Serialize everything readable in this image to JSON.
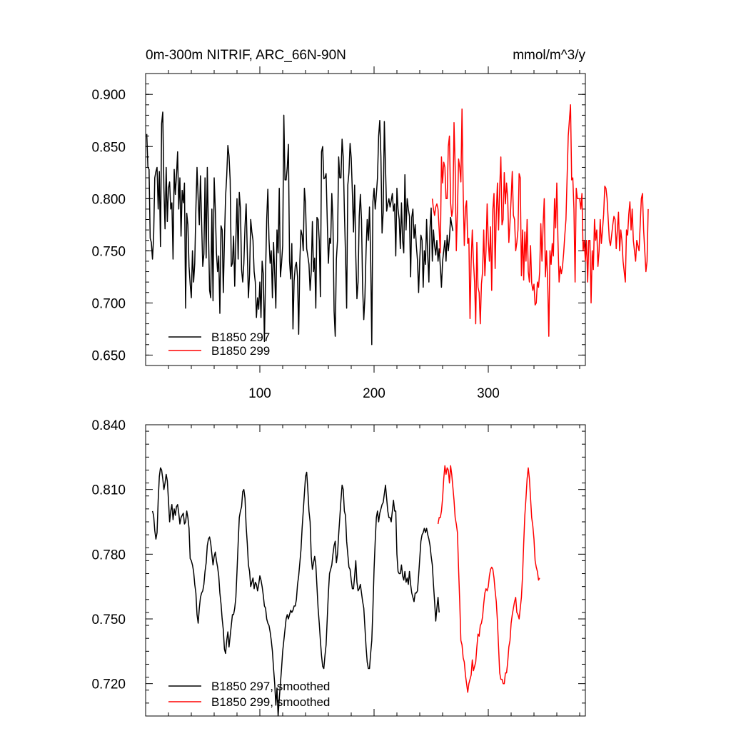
{
  "colors": {
    "series1": "#000000",
    "series2": "#ff0000",
    "axes": "#000000",
    "background": "#ffffff"
  },
  "chart_data": [
    {
      "type": "line",
      "title": "0m-300m NITRIF, ARC_66N-90N",
      "units": "mmol/m^3/y",
      "xlabel": "",
      "ylabel": "",
      "xlim": [
        0,
        385
      ],
      "ylim": [
        0.64,
        0.92
      ],
      "xticks": [
        100,
        200,
        300
      ],
      "xtick_labels": [
        "100",
        "200",
        "300"
      ],
      "yticks": [
        0.65,
        0.7,
        0.75,
        0.8,
        0.85,
        0.9
      ],
      "ytick_labels": [
        "0.650",
        "0.700",
        "0.750",
        "0.800",
        "0.850",
        "0.900"
      ],
      "legend_position": "bottom-left",
      "grid": false,
      "series": [
        {
          "name": "B1850 297",
          "color": "#000000",
          "x_start": 1,
          "values": [
            0.862,
            0.83,
            0.828,
            0.762,
            0.758,
            0.742,
            0.763,
            0.82,
            0.826,
            0.83,
            0.79,
            0.826,
            0.754,
            0.872,
            0.883,
            0.81,
            0.771,
            0.83,
            0.778,
            0.81,
            0.816,
            0.79,
            0.796,
            0.742,
            0.828,
            0.804,
            0.822,
            0.845,
            0.79,
            0.82,
            0.764,
            0.808,
            0.796,
            0.815,
            0.695,
            0.786,
            0.775,
            0.735,
            0.718,
            0.705,
            0.75,
            0.72,
            0.738,
            0.79,
            0.83,
            0.8,
            0.775,
            0.822,
            0.778,
            0.735,
            0.747,
            0.82,
            0.743,
            0.83,
            0.77,
            0.712,
            0.705,
            0.79,
            0.702,
            0.82,
            0.79,
            0.748,
            0.73,
            0.745,
            0.69,
            0.774,
            0.77,
            0.71,
            0.76,
            0.802,
            0.822,
            0.851,
            0.841,
            0.818,
            0.735,
            0.738,
            0.764,
            0.716,
            0.761,
            0.8,
            0.742,
            0.806,
            0.791,
            0.732,
            0.72,
            0.738,
            0.773,
            0.795,
            0.75,
            0.705,
            0.728,
            0.78,
            0.768,
            0.76,
            0.73,
            0.72,
            0.686,
            0.705,
            0.694,
            0.72,
            0.686,
            0.74,
            0.728,
            0.663,
            0.728,
            0.78,
            0.809,
            0.761,
            0.738,
            0.75,
            0.705,
            0.758,
            0.728,
            0.695,
            0.77,
            0.748,
            0.81,
            0.725,
            0.738,
            0.755,
            0.88,
            0.818,
            0.818,
            0.83,
            0.852,
            0.74,
            0.723,
            0.757,
            0.675,
            0.721,
            0.735,
            0.739,
            0.725,
            0.67,
            0.74,
            0.77,
            0.765,
            0.75,
            0.81,
            0.795,
            0.752,
            0.745,
            0.737,
            0.712,
            0.73,
            0.778,
            0.73,
            0.743,
            0.695,
            0.782,
            0.78,
            0.76,
            0.706,
            0.845,
            0.85,
            0.819,
            0.82,
            0.824,
            0.78,
            0.738,
            0.762,
            0.757,
            0.805,
            0.778,
            0.692,
            0.668,
            0.742,
            0.76,
            0.84,
            0.82,
            0.82,
            0.857,
            0.84,
            0.789,
            0.746,
            0.695,
            0.813,
            0.825,
            0.853,
            0.839,
            0.806,
            0.768,
            0.813,
            0.745,
            0.704,
            0.72,
            0.783,
            0.804,
            0.78,
            0.714,
            0.684,
            0.706,
            0.75,
            0.78,
            0.76,
            0.792,
            0.744,
            0.66,
            0.797,
            0.81,
            0.79,
            0.804,
            0.82,
            0.86,
            0.875,
            0.84,
            0.767,
            0.787,
            0.874,
            0.831,
            0.788,
            0.795,
            0.8,
            0.792,
            0.798,
            0.805,
            0.788,
            0.795,
            0.745,
            0.81,
            0.79,
            0.78,
            0.752,
            0.796,
            0.76,
            0.748,
            0.823,
            0.77,
            0.8,
            0.79,
            0.783,
            0.725,
            0.782,
            0.79,
            0.762,
            0.775,
            0.755,
            0.741,
            0.71,
            0.742,
            0.765,
            0.76,
            0.715,
            0.75,
            0.737,
            0.78,
            0.745,
            0.72,
            0.772,
            0.791,
            0.74,
            0.77,
            0.755,
            0.746,
            0.76,
            0.74,
            0.752,
            0.735,
            0.715,
            0.74,
            0.75,
            0.76,
            0.74,
            0.765,
            0.75,
            0.762,
            0.782,
            0.775,
            0.769
          ]
        },
        {
          "name": "B1850 299",
          "color": "#ff0000",
          "x_start": 251,
          "values": [
            0.8,
            0.79,
            0.784,
            0.792,
            0.795,
            0.79,
            0.77,
            0.748,
            0.84,
            0.815,
            0.835,
            0.83,
            0.8,
            0.8,
            0.85,
            0.86,
            0.796,
            0.783,
            0.79,
            0.873,
            0.83,
            0.75,
            0.788,
            0.838,
            0.83,
            0.816,
            0.886,
            0.808,
            0.755,
            0.791,
            0.798,
            0.757,
            0.762,
            0.685,
            0.74,
            0.77,
            0.74,
            0.72,
            0.68,
            0.758,
            0.715,
            0.71,
            0.68,
            0.718,
            0.73,
            0.77,
            0.726,
            0.75,
            0.795,
            0.76,
            0.74,
            0.773,
            0.712,
            0.79,
            0.805,
            0.733,
            0.785,
            0.815,
            0.77,
            0.81,
            0.84,
            0.775,
            0.78,
            0.825,
            0.795,
            0.815,
            0.8,
            0.758,
            0.777,
            0.8,
            0.826,
            0.784,
            0.78,
            0.75,
            0.758,
            0.77,
            0.824,
            0.82,
            0.726,
            0.77,
            0.722,
            0.768,
            0.74,
            0.78,
            0.73,
            0.72,
            0.755,
            0.719,
            0.712,
            0.718,
            0.698,
            0.7,
            0.72,
            0.715,
            0.73,
            0.776,
            0.74,
            0.775,
            0.8,
            0.725,
            0.75,
            0.72,
            0.668,
            0.75,
            0.737,
            0.757,
            0.745,
            0.8,
            0.772,
            0.815,
            0.76,
            0.72,
            0.735,
            0.728,
            0.735,
            0.748,
            0.765,
            0.78,
            0.82,
            0.86,
            0.875,
            0.89,
            0.818,
            0.82,
            0.79,
            0.72,
            0.81,
            0.8,
            0.8,
            0.8,
            0.79,
            0.805,
            0.75,
            0.76,
            0.74,
            0.76,
            0.72,
            0.76,
            0.76,
            0.7,
            0.75,
            0.732,
            0.78,
            0.76,
            0.77,
            0.735,
            0.75,
            0.78,
            0.757,
            0.77,
            0.785,
            0.812,
            0.81,
            0.8,
            0.78,
            0.76,
            0.755,
            0.765,
            0.775,
            0.783,
            0.78,
            0.752,
            0.77,
            0.787,
            0.75,
            0.77,
            0.76,
            0.74,
            0.73,
            0.72,
            0.77,
            0.765,
            0.785,
            0.797,
            0.77,
            0.79,
            0.76,
            0.75,
            0.74,
            0.76,
            0.755,
            0.75,
            0.775,
            0.8,
            0.805,
            0.77,
            0.75,
            0.73,
            0.74,
            0.79
          ]
        }
      ]
    },
    {
      "type": "line",
      "title": "",
      "xlabel": "",
      "ylabel": "",
      "xlim": [
        0,
        385
      ],
      "ylim": [
        0.705,
        0.84
      ],
      "xticks": [
        100,
        200,
        300
      ],
      "yticks": [
        0.72,
        0.75,
        0.78,
        0.81,
        0.84
      ],
      "ytick_labels": [
        "0.720",
        "0.750",
        "0.780",
        "0.810",
        "0.840"
      ],
      "legend_position": "bottom-left",
      "grid": false,
      "series": [
        {
          "name": "B1850 297, smoothed",
          "color": "#000000",
          "x_start": 6,
          "values": [
            0.8,
            0.798,
            0.791,
            0.787,
            0.79,
            0.805,
            0.816,
            0.82,
            0.819,
            0.815,
            0.81,
            0.813,
            0.817,
            0.814,
            0.805,
            0.795,
            0.8,
            0.803,
            0.796,
            0.801,
            0.798,
            0.802,
            0.803,
            0.799,
            0.794,
            0.797,
            0.798,
            0.799,
            0.794,
            0.795,
            0.8,
            0.797,
            0.792,
            0.778,
            0.777,
            0.775,
            0.772,
            0.766,
            0.762,
            0.752,
            0.748,
            0.755,
            0.76,
            0.762,
            0.763,
            0.766,
            0.772,
            0.776,
            0.784,
            0.787,
            0.788,
            0.785,
            0.78,
            0.775,
            0.779,
            0.781,
            0.777,
            0.774,
            0.77,
            0.762,
            0.757,
            0.75,
            0.745,
            0.736,
            0.734,
            0.74,
            0.744,
            0.737,
            0.742,
            0.747,
            0.752,
            0.752,
            0.755,
            0.76,
            0.772,
            0.785,
            0.797,
            0.8,
            0.802,
            0.809,
            0.81,
            0.806,
            0.793,
            0.785,
            0.775,
            0.772,
            0.765,
            0.767,
            0.769,
            0.764,
            0.767,
            0.766,
            0.763,
            0.766,
            0.77,
            0.768,
            0.765,
            0.761,
            0.756,
            0.755,
            0.75,
            0.748,
            0.747,
            0.744,
            0.74,
            0.735,
            0.727,
            0.72,
            0.71,
            0.718,
            0.705,
            0.713,
            0.72,
            0.727,
            0.735,
            0.74,
            0.745,
            0.75,
            0.752,
            0.75,
            0.752,
            0.754,
            0.753,
            0.754,
            0.756,
            0.756,
            0.759,
            0.766,
            0.77,
            0.776,
            0.782,
            0.792,
            0.8,
            0.808,
            0.816,
            0.818,
            0.81,
            0.8,
            0.795,
            0.779,
            0.773,
            0.776,
            0.779,
            0.775,
            0.765,
            0.755,
            0.748,
            0.74,
            0.733,
            0.728,
            0.727,
            0.733,
            0.738,
            0.75,
            0.762,
            0.771,
            0.773,
            0.775,
            0.78,
            0.784,
            0.786,
            0.776,
            0.78,
            0.789,
            0.797,
            0.805,
            0.812,
            0.81,
            0.8,
            0.798,
            0.786,
            0.78,
            0.774,
            0.773,
            0.768,
            0.764,
            0.764,
            0.77,
            0.777,
            0.767,
            0.763,
            0.764,
            0.766,
            0.762,
            0.758,
            0.755,
            0.746,
            0.737,
            0.73,
            0.727,
            0.727,
            0.734,
            0.74,
            0.755,
            0.773,
            0.786,
            0.797,
            0.8,
            0.795,
            0.799,
            0.801,
            0.803,
            0.804,
            0.808,
            0.812,
            0.806,
            0.8,
            0.797,
            0.797,
            0.795,
            0.8,
            0.805,
            0.8,
            0.8,
            0.78,
            0.772,
            0.771,
            0.771,
            0.775,
            0.77,
            0.768,
            0.772,
            0.767,
            0.769,
            0.766,
            0.772,
            0.766,
            0.762,
            0.76,
            0.758,
            0.762,
            0.762,
            0.763,
            0.77,
            0.778,
            0.786,
            0.789,
            0.79,
            0.792,
            0.79,
            0.792,
            0.789,
            0.787,
            0.784,
            0.779,
            0.775,
            0.766,
            0.758,
            0.749,
            0.755,
            0.76,
            0.753
          ]
        },
        {
          "name": "B1850 299, smoothed",
          "color": "#ff0000",
          "x_start": 256,
          "values": [
            0.794,
            0.797,
            0.797,
            0.8,
            0.806,
            0.815,
            0.821,
            0.817,
            0.82,
            0.819,
            0.813,
            0.821,
            0.817,
            0.811,
            0.805,
            0.797,
            0.794,
            0.79,
            0.773,
            0.758,
            0.74,
            0.738,
            0.732,
            0.73,
            0.724,
            0.72,
            0.716,
            0.72,
            0.722,
            0.724,
            0.731,
            0.726,
            0.728,
            0.73,
            0.737,
            0.743,
            0.742,
            0.747,
            0.748,
            0.751,
            0.757,
            0.762,
            0.764,
            0.763,
            0.765,
            0.77,
            0.773,
            0.774,
            0.773,
            0.769,
            0.763,
            0.758,
            0.749,
            0.737,
            0.725,
            0.722,
            0.722,
            0.72,
            0.72,
            0.725,
            0.725,
            0.73,
            0.737,
            0.74,
            0.748,
            0.752,
            0.755,
            0.758,
            0.76,
            0.753,
            0.752,
            0.75,
            0.755,
            0.76,
            0.77,
            0.785,
            0.798,
            0.806,
            0.815,
            0.82,
            0.815,
            0.806,
            0.797,
            0.793,
            0.787,
            0.777,
            0.774,
            0.772,
            0.768,
            0.769
          ]
        }
      ]
    }
  ]
}
